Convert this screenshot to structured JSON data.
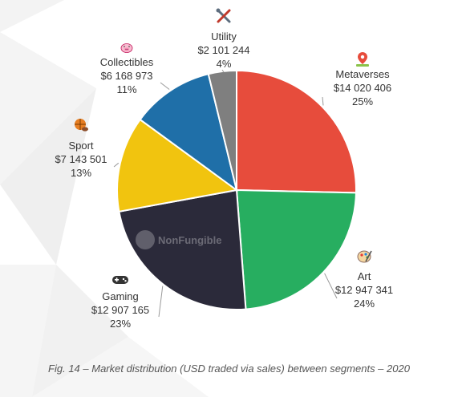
{
  "chart_data": {
    "type": "pie",
    "title": "",
    "slices": [
      {
        "category": "Metaverses",
        "value": "$14 020 406",
        "percent": "25%",
        "amount": 14020406,
        "color": "#e74c3c",
        "icon": "map-pin-icon"
      },
      {
        "category": "Art",
        "value": "$12 947 341",
        "percent": "24%",
        "amount": 12947341,
        "color": "#27ae60",
        "icon": "palette-icon"
      },
      {
        "category": "Gaming",
        "value": "$12 907 165",
        "percent": "23%",
        "amount": 12907165,
        "color": "#2b2a3a",
        "icon": "gamepad-icon"
      },
      {
        "category": "Sport",
        "value": "$7 143 501",
        "percent": "13%",
        "amount": 7143501,
        "color": "#f1c40f",
        "icon": "sport-balls-icon"
      },
      {
        "category": "Collectibles",
        "value": "$6 168 973",
        "percent": "11%",
        "amount": 6168973,
        "color": "#1f6fa8",
        "icon": "pig-icon"
      },
      {
        "category": "Utility",
        "value": "$2 101 244",
        "percent": "4%",
        "amount": 2101244,
        "color": "#7f7f7f",
        "icon": "tools-icon"
      }
    ]
  },
  "watermark": "NonFungible",
  "caption": "Fig. 14 – Market distribution (USD traded via sales) between segments – 2020"
}
